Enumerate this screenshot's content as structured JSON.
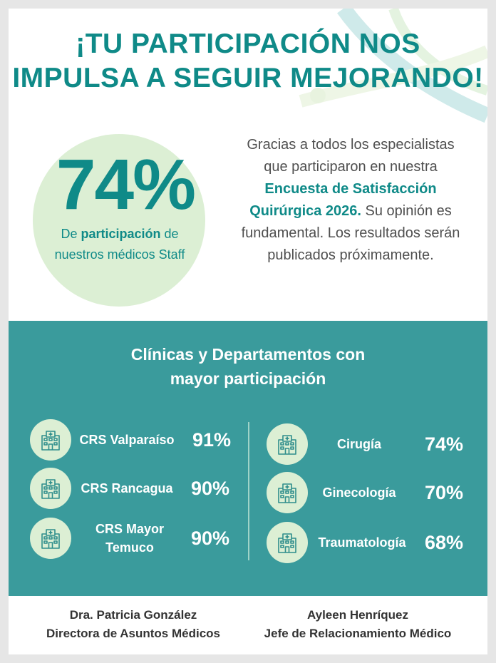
{
  "header": {
    "line1": "¡TU PARTICIPACIÓN NOS",
    "line2": "IMPULSA A SEGUIR MEJORANDO!"
  },
  "participation": {
    "percent": "74%",
    "text_pre": "De ",
    "text_bold": "participación",
    "text_post": " de nuestros médicos Staff"
  },
  "thanks": {
    "text_pre": "Gracias a todos los especialistas que participaron en nuestra ",
    "text_bold": "Encuesta de Satisfacción Quirúrgica 2026.",
    "text_post": " Su opinión es fundamental. Los resultados serán publicados próximamente."
  },
  "ranking": {
    "title_line1": "Clínicas y Departamentos con",
    "title_line2": "mayor participación",
    "left": [
      {
        "name": "CRS Valparaíso",
        "pct": "91%",
        "icon": "hospital-icon"
      },
      {
        "name": "CRS Rancagua",
        "pct": "90%",
        "icon": "hospital-icon"
      },
      {
        "name": "CRS Mayor Temuco",
        "pct": "90%",
        "icon": "hospital-icon"
      }
    ],
    "right": [
      {
        "name": "Cirugía",
        "pct": "74%",
        "icon": "hospital-icon"
      },
      {
        "name": "Ginecología",
        "pct": "70%",
        "icon": "hospital-icon"
      },
      {
        "name": "Traumatología",
        "pct": "68%",
        "icon": "hospital-icon"
      }
    ]
  },
  "signatures": [
    {
      "name": "Dra. Patricia González",
      "role": "Directora de Asuntos Médicos"
    },
    {
      "name": "Ayleen Henríquez",
      "role": "Jefe de Relacionamiento Médico"
    }
  ],
  "colors": {
    "teal": "#0f8a88",
    "panel": "#3a9b9c",
    "light_green": "#dcefd4",
    "text_gray": "#4f4f4f"
  }
}
